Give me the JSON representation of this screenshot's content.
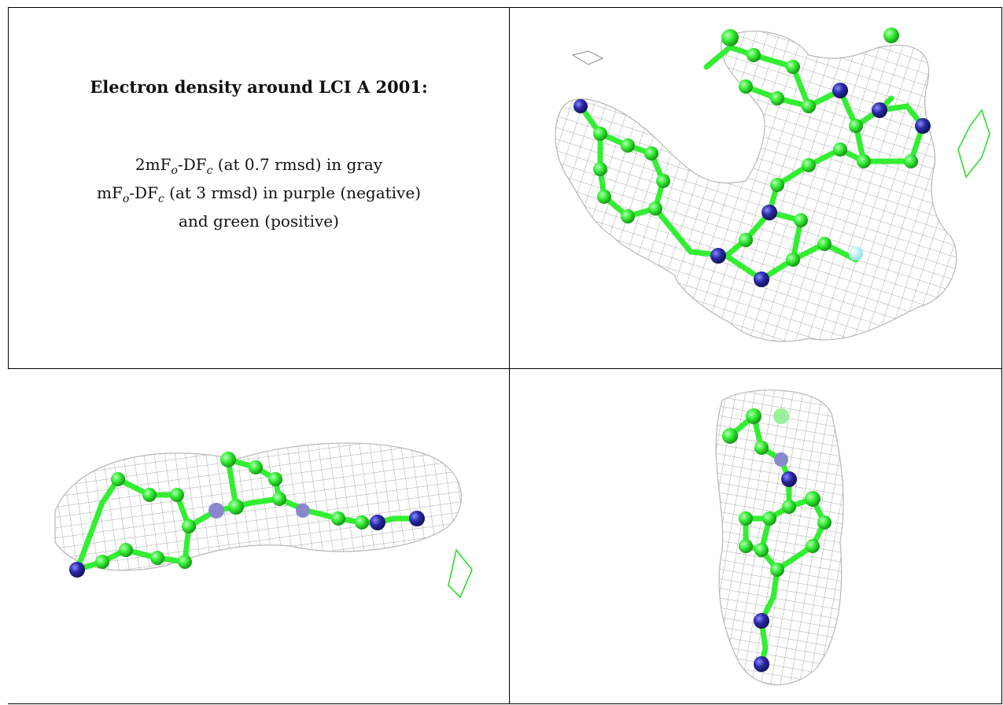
{
  "caption": {
    "title": "Electron density around LCI A 2001:",
    "line1_prefix": "2mF",
    "line1_sub1": "o",
    "line1_mid": "-DF",
    "line1_sub2": "c",
    "line1_suffix": " (at 0.7 rmsd) in gray",
    "line2_prefix": "mF",
    "line2_sub1": "o",
    "line2_mid": "-DF",
    "line2_sub2": "c",
    "line2_suffix": " (at 3 rmsd) in purple (negative)",
    "line3": "and green (positive)"
  },
  "colors": {
    "mesh_gray": "#8c8c8c",
    "carbon_green": "#33ee33",
    "nitrogen_blue": "#2a2aa8",
    "fluorine_cyan": "#a6eef2",
    "positive_green": "#22dd22"
  }
}
